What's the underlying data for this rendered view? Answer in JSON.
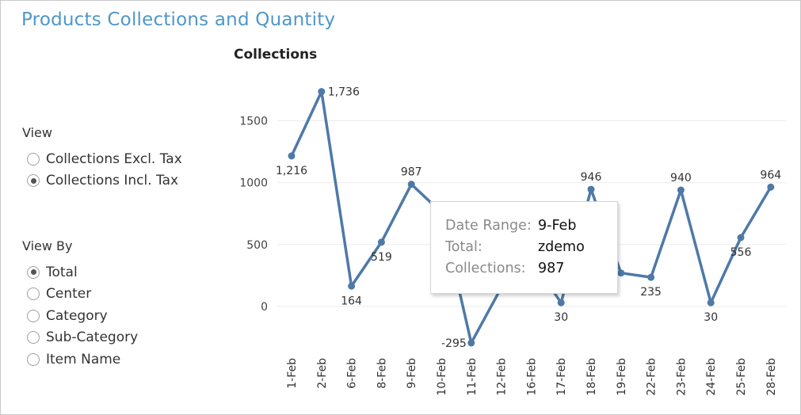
{
  "page": {
    "title": "Products Collections and Quantity"
  },
  "view": {
    "label": "View",
    "options": [
      "Collections Excl. Tax",
      "Collections Incl. Tax"
    ],
    "selected": 1
  },
  "view_by": {
    "label": "View By",
    "options": [
      "Total",
      "Center",
      "Category",
      "Sub-Category",
      "Item Name"
    ],
    "selected": 0
  },
  "colors": {
    "title": "#4f97c8",
    "line": "#4e79a7"
  },
  "tooltip": {
    "rows": [
      {
        "label": "Date Range:",
        "value": "9-Feb"
      },
      {
        "label": "Total:",
        "value": "zdemo"
      },
      {
        "label": "Collections:",
        "value": "987"
      }
    ]
  },
  "chart_data": {
    "type": "line",
    "title": "Collections",
    "categories": [
      "1-Feb",
      "2-Feb",
      "6-Feb",
      "8-Feb",
      "9-Feb",
      "10-Feb",
      "11-Feb",
      "12-Feb",
      "16-Feb",
      "17-Feb",
      "18-Feb",
      "19-Feb",
      "22-Feb",
      "23-Feb",
      "24-Feb",
      "25-Feb",
      "28-Feb"
    ],
    "values": [
      1216,
      1736,
      164,
      519,
      987,
      760,
      -295,
      150,
      380,
      30,
      946,
      270,
      235,
      940,
      30,
      556,
      964
    ],
    "data_labels": [
      "1,216",
      "1,736",
      "164",
      "519",
      "987",
      "",
      "-295",
      "",
      "",
      "30",
      "946",
      "",
      "235",
      "940",
      "30",
      "556",
      "964"
    ],
    "yticks": [
      0,
      500,
      1000,
      1500
    ],
    "ytick_labels": [
      "0",
      "500",
      "1000",
      "1500"
    ],
    "ylim": [
      -340,
      1900
    ],
    "grid": true,
    "xlabel": "",
    "ylabel": ""
  }
}
